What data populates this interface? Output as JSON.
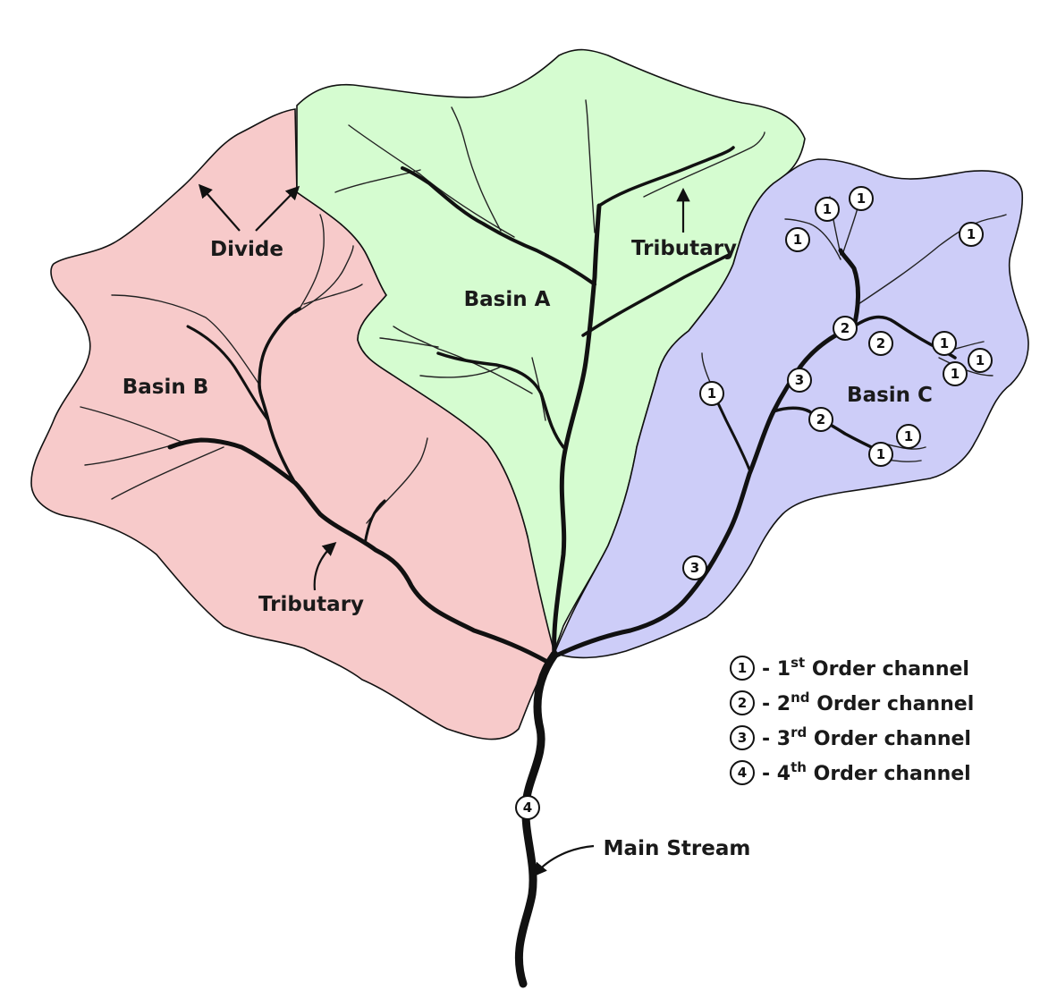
{
  "colors": {
    "basin_a": "#d5fcd0",
    "basin_b": "#f7caca",
    "basin_c": "#cdcdf8",
    "outline": "#111111"
  },
  "labels": {
    "basin_a": "Basin A",
    "basin_b": "Basin B",
    "basin_c": "Basin C",
    "divide": "Divide",
    "tributary_a": "Tributary",
    "tributary_b": "Tributary",
    "main_stream": "Main Stream"
  },
  "order_markers": [
    "1",
    "2",
    "3",
    "4"
  ],
  "legend": [
    {
      "num": "1",
      "dash": "-",
      "n": "1",
      "suffix": "st",
      "text": "Order channel"
    },
    {
      "num": "2",
      "dash": "-",
      "n": "2",
      "suffix": "nd",
      "text": "Order channel"
    },
    {
      "num": "3",
      "dash": "-",
      "n": "3",
      "suffix": "rd",
      "text": "Order channel"
    },
    {
      "num": "4",
      "dash": "-",
      "n": "4",
      "suffix": "th",
      "text": "Order channel"
    }
  ]
}
